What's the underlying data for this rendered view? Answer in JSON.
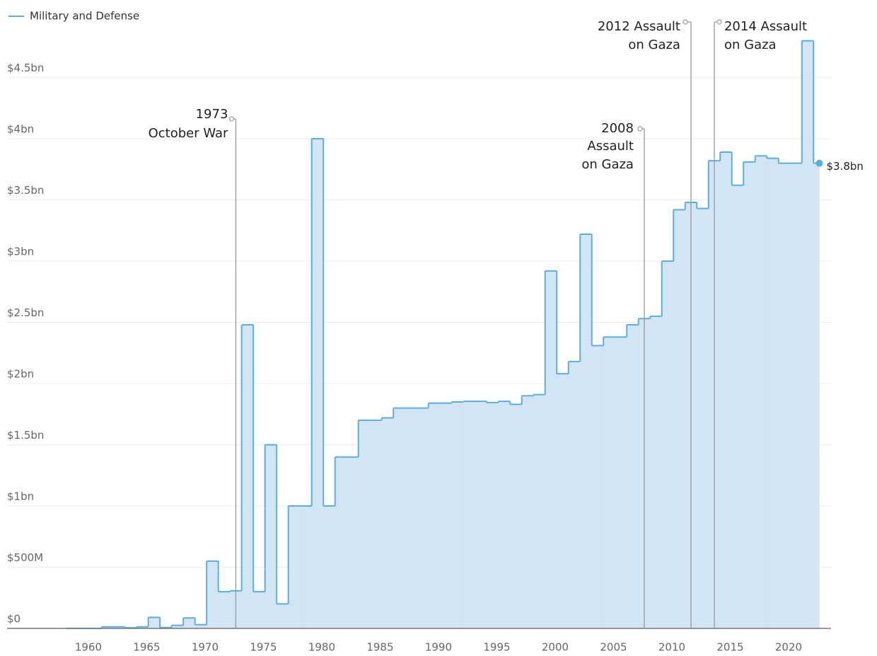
{
  "chart_data": {
    "type": "step-area",
    "x": [
      1959,
      1960,
      1961,
      1962,
      1963,
      1964,
      1965,
      1966,
      1967,
      1968,
      1969,
      1970,
      1971,
      1972,
      1973,
      1974,
      1975,
      1976,
      1977,
      1978,
      1979,
      1980,
      1981,
      1982,
      1983,
      1984,
      1985,
      1986,
      1987,
      1988,
      1989,
      1990,
      1991,
      1992,
      1993,
      1994,
      1995,
      1996,
      1997,
      1998,
      1999,
      2000,
      2001,
      2002,
      2003,
      2004,
      2005,
      2006,
      2007,
      2008,
      2009,
      2010,
      2011,
      2012,
      2013,
      2014,
      2015,
      2016,
      2017,
      2018,
      2019,
      2020,
      2021,
      2022,
      2023
    ],
    "series": [
      {
        "name": "Military and Defense",
        "color": "#5aafe0",
        "fill": "#d2e5f4",
        "values": [
          0,
          0,
          0,
          0.013,
          0.013,
          0.005,
          0.013,
          0.09,
          0.007,
          0.025,
          0.085,
          0.03,
          0.55,
          0.3,
          0.307,
          2.48,
          0.3,
          1.5,
          0.2,
          1.0,
          1.0,
          4.0,
          1.0,
          1.4,
          1.4,
          1.7,
          1.7,
          1.72,
          1.8,
          1.8,
          1.8,
          1.84,
          1.84,
          1.85,
          1.855,
          1.855,
          1.845,
          1.855,
          1.83,
          1.9,
          1.91,
          2.92,
          2.08,
          2.18,
          3.22,
          2.31,
          2.38,
          2.38,
          2.48,
          2.53,
          2.55,
          3.0,
          3.42,
          3.48,
          3.43,
          3.82,
          3.89,
          3.62,
          3.81,
          3.86,
          3.84,
          3.8,
          3.8,
          4.8,
          3.8
        ],
        "value_labels": [
          null,
          null,
          null,
          null,
          null,
          null,
          null,
          null,
          null,
          null,
          null,
          null,
          null,
          null,
          null,
          null,
          null,
          null,
          null,
          null,
          null,
          null,
          null,
          null,
          null,
          null,
          null,
          null,
          null,
          null,
          null,
          null,
          null,
          null,
          null,
          null,
          null,
          null,
          null,
          null,
          null,
          null,
          null,
          null,
          null,
          null,
          null,
          null,
          null,
          null,
          null,
          null,
          null,
          null,
          null,
          null,
          null,
          null,
          null,
          null,
          null,
          null,
          null,
          null,
          "$3.8bn"
        ]
      }
    ],
    "xlim": [
      1953.4,
      2024
    ],
    "xticks": [
      1960,
      1965,
      1970,
      1975,
      1980,
      1985,
      1990,
      1995,
      2000,
      2005,
      2010,
      2015,
      2020
    ],
    "ylim": [
      0,
      5.1
    ],
    "yticks": [
      {
        "value": 0,
        "label": "$0"
      },
      {
        "value": 0.5,
        "label": "$500M"
      },
      {
        "value": 1,
        "label": "$1bn"
      },
      {
        "value": 1.5,
        "label": "$1.5bn"
      },
      {
        "value": 2,
        "label": "$2bn"
      },
      {
        "value": 2.5,
        "label": "$2.5bn"
      },
      {
        "value": 3,
        "label": "$3bn"
      },
      {
        "value": 3.5,
        "label": "$3.5bn"
      },
      {
        "value": 4,
        "label": "$4bn"
      },
      {
        "value": 4.5,
        "label": "$4.5bn"
      }
    ],
    "grid": true,
    "legend": "top-left",
    "annotations": [
      {
        "x": 1973,
        "text": [
          "1973",
          "October War"
        ]
      },
      {
        "x": 2008,
        "text": [
          "2008",
          "Assault",
          "on Gaza"
        ]
      },
      {
        "x": 2012,
        "text": [
          "2012 Assault",
          "on Gaza"
        ]
      },
      {
        "x": 2014,
        "text": [
          "2014 Assault",
          "on Gaza"
        ]
      }
    ]
  }
}
